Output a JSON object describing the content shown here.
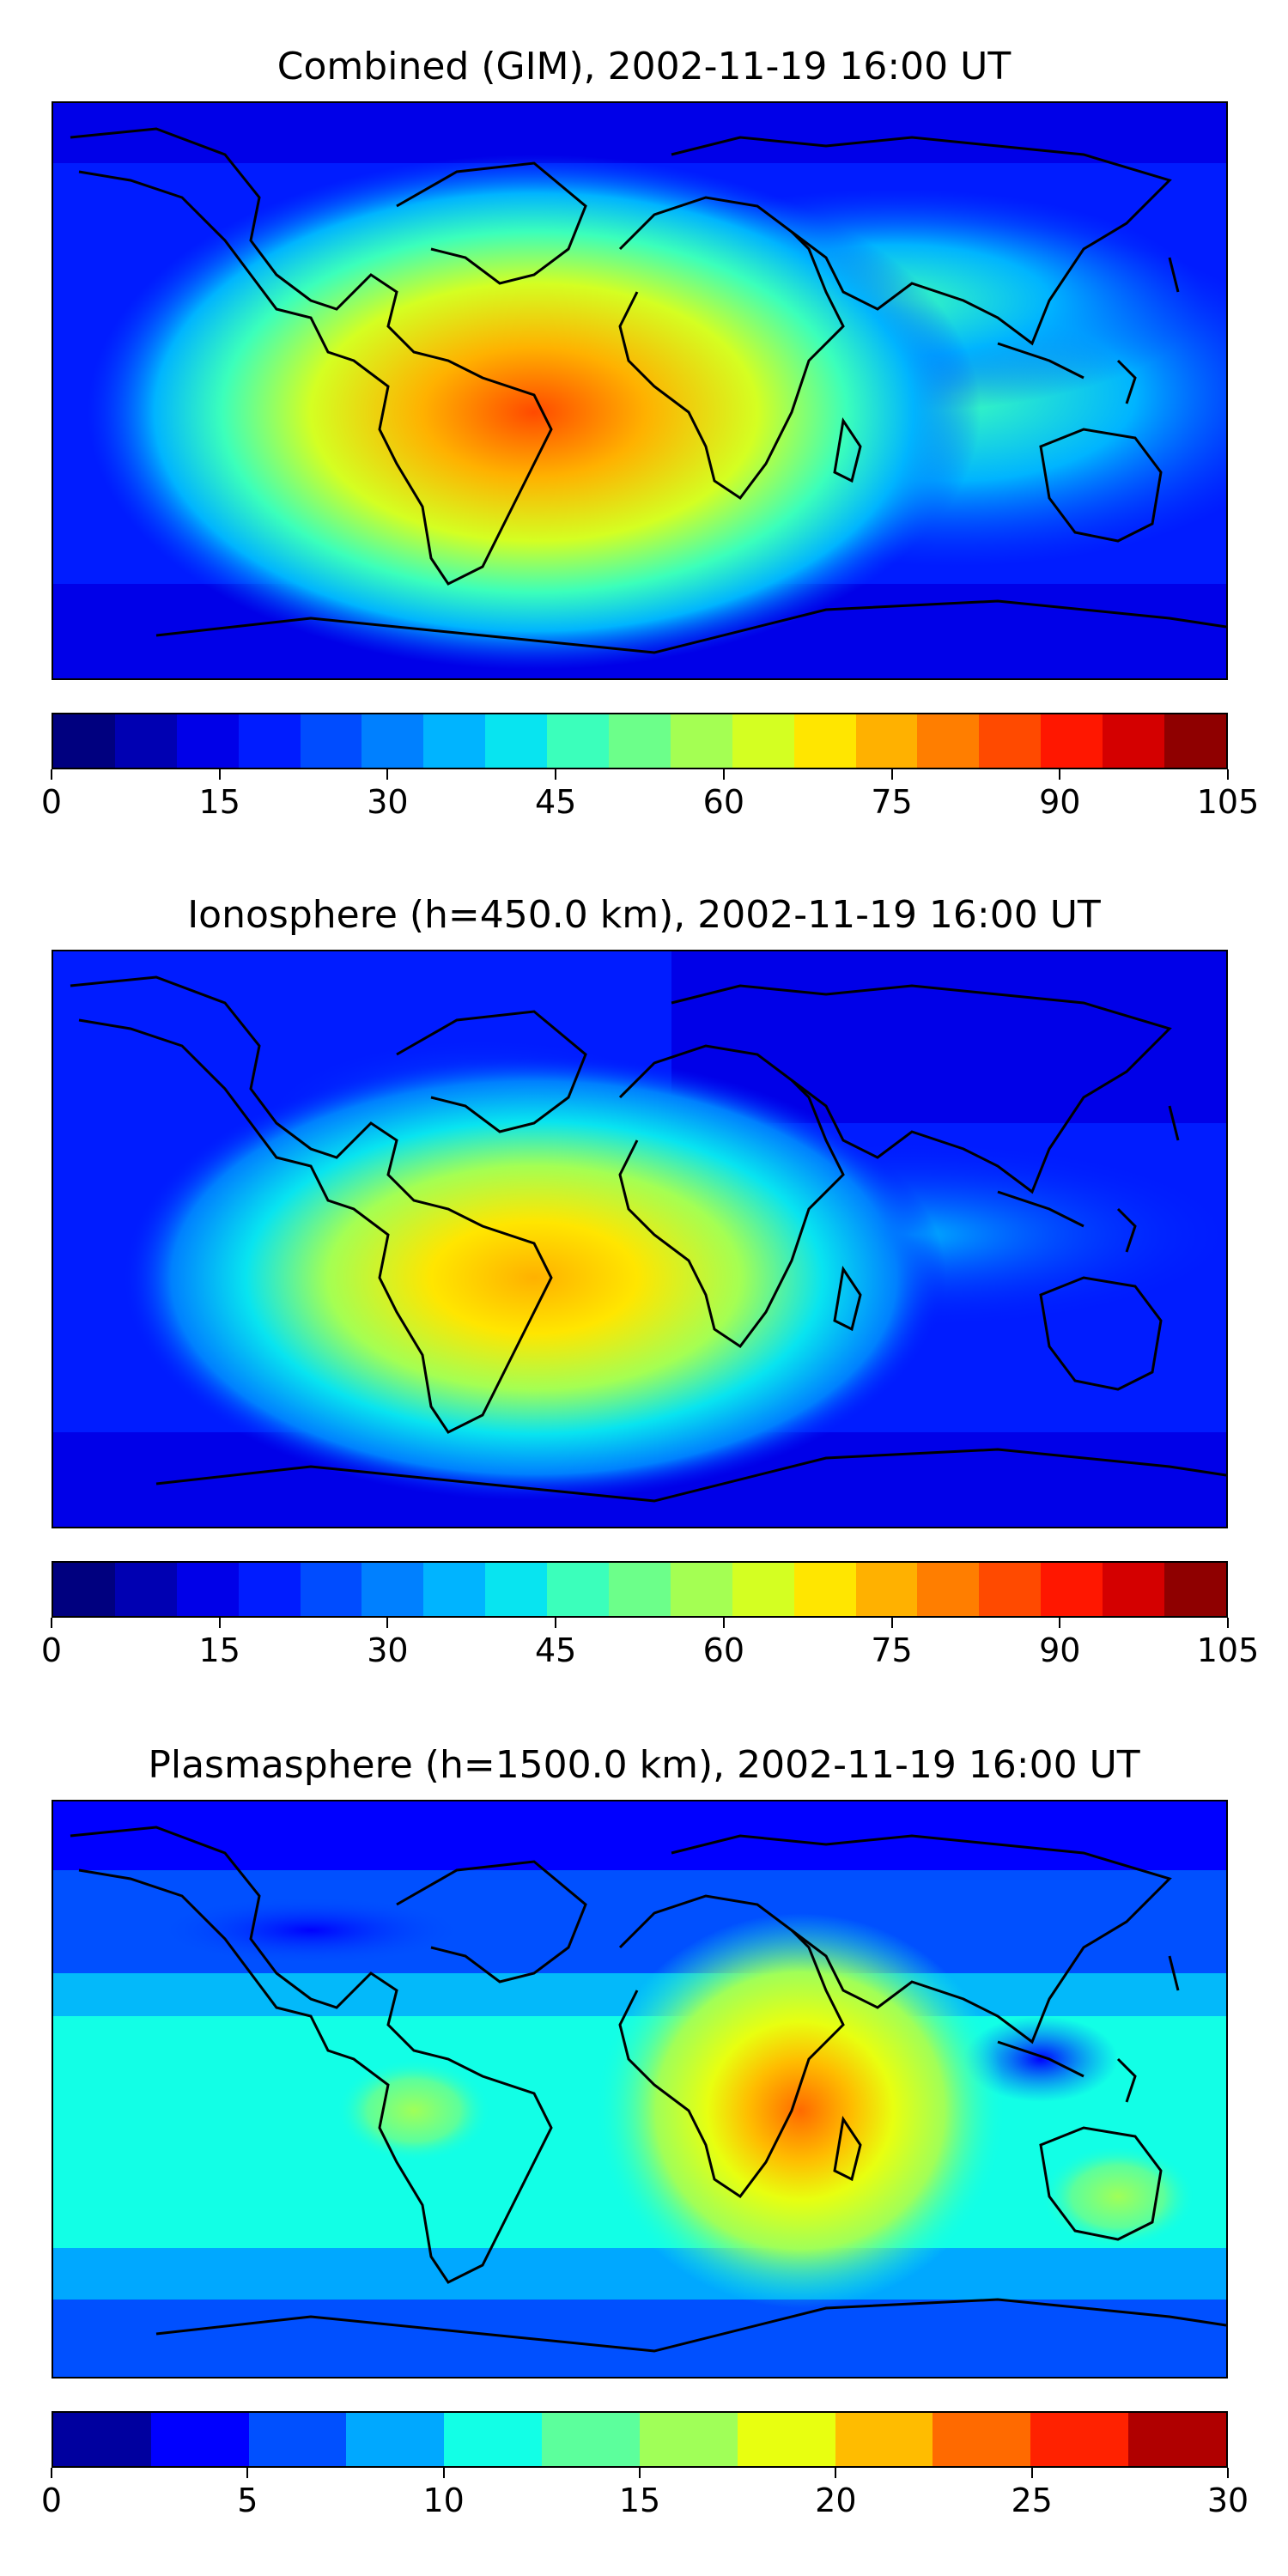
{
  "panels": [
    {
      "title": "Combined (GIM), 2002-11-19 16:00 UT",
      "colorbar": {
        "colors": [
          "#00007f",
          "#0000b2",
          "#0000e8",
          "#001cff",
          "#004cff",
          "#0080ff",
          "#00b4ff",
          "#08e4f0",
          "#3bffbb",
          "#6cff8a",
          "#a4ff53",
          "#d4ff22",
          "#ffe600",
          "#ffb100",
          "#ff7e00",
          "#ff4a00",
          "#ff1700",
          "#d40000",
          "#8f0000"
        ],
        "tick_labels": [
          "0",
          "15",
          "30",
          "45",
          "60",
          "75",
          "90",
          "105"
        ],
        "vmin": 0,
        "vmax": 105
      }
    },
    {
      "title": "Ionosphere  (h=450.0 km), 2002-11-19 16:00 UT",
      "colorbar": {
        "colors": [
          "#00007f",
          "#0000b2",
          "#0000e8",
          "#001cff",
          "#004cff",
          "#0080ff",
          "#00b4ff",
          "#08e4f0",
          "#3bffbb",
          "#6cff8a",
          "#a4ff53",
          "#d4ff22",
          "#ffe600",
          "#ffb100",
          "#ff7e00",
          "#ff4a00",
          "#ff1700",
          "#d40000",
          "#8f0000"
        ],
        "tick_labels": [
          "0",
          "15",
          "30",
          "45",
          "60",
          "75",
          "90",
          "105"
        ],
        "vmin": 0,
        "vmax": 105
      }
    },
    {
      "title": "Plasmasphere (h=1500.0 km), 2002-11-19 16:00 UT",
      "colorbar": {
        "colors": [
          "#00009f",
          "#0000ff",
          "#0050ff",
          "#00a8ff",
          "#12ffe6",
          "#5cff9c",
          "#a0ff58",
          "#e8ff10",
          "#ffbc00",
          "#ff6a00",
          "#ff2200",
          "#b00000"
        ],
        "tick_labels": [
          "0",
          "5",
          "10",
          "15",
          "20",
          "25",
          "30"
        ],
        "vmin": 0,
        "vmax": 30
      }
    }
  ]
}
